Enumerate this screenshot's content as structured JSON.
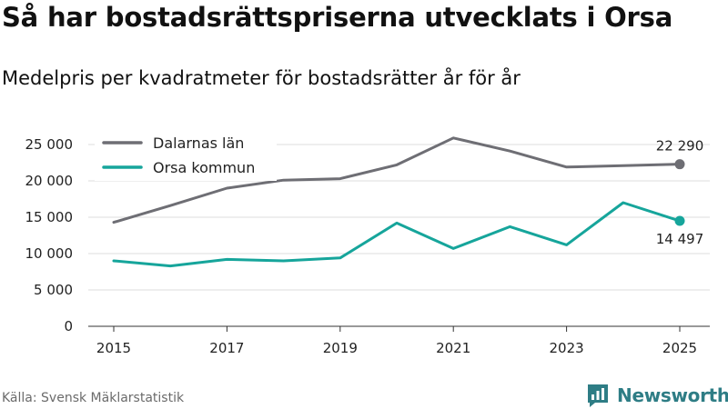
{
  "title": "Så har bostadsrättspriserna utvecklats i Orsa",
  "subtitle": "Medelpris per kvadratmeter för bostadsrätter år för år",
  "source": "Källa: Svensk Mäklarstatistik",
  "brand": {
    "name": "Newsworthy",
    "icon": "newsworthy-logo-icon"
  },
  "colors": {
    "dalarna": "#6e6e74",
    "orsa": "#16a59b",
    "grid": "#dddddd",
    "text": "#222222"
  },
  "chart_data": {
    "type": "line",
    "x": [
      2015,
      2016,
      2017,
      2018,
      2019,
      2020,
      2021,
      2022,
      2023,
      2024,
      2025
    ],
    "xticks": [
      2015,
      2017,
      2019,
      2021,
      2023,
      2025
    ],
    "xtick_labels": [
      "2015",
      "2017",
      "2019",
      "2021",
      "2023",
      "2025"
    ],
    "yticks": [
      0,
      5000,
      10000,
      15000,
      20000,
      25000
    ],
    "ytick_labels": [
      "0",
      "5 000",
      "10 000",
      "15 000",
      "20 000",
      "25 000"
    ],
    "ylim": [
      0,
      26500
    ],
    "xlim": [
      2014.5,
      2025.5
    ],
    "series": [
      {
        "name": "Dalarnas län",
        "color": "#6e6e74",
        "values": [
          14300,
          16600,
          19000,
          20100,
          20300,
          22200,
          25900,
          24100,
          21900,
          22100,
          22290
        ],
        "end_label": "22 290",
        "end_label_position": "above"
      },
      {
        "name": "Orsa kommun",
        "color": "#16a59b",
        "values": [
          9000,
          8300,
          9200,
          9000,
          9400,
          14200,
          10700,
          13700,
          11200,
          17000,
          14497
        ],
        "end_label": "14 497",
        "end_label_position": "below"
      }
    ],
    "legend_position": "top-left"
  }
}
